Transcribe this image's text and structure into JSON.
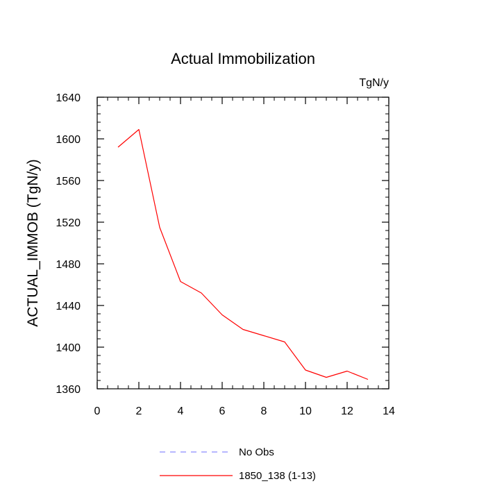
{
  "chart_data": {
    "type": "line",
    "title": "Actual Immobilization",
    "units_label": "TgN/y",
    "ylabel": "ACTUAL_IMMOB  (TgN/y)",
    "xlabel": "",
    "xlim": [
      0,
      14
    ],
    "ylim": [
      1360,
      1640
    ],
    "x_ticks": [
      "0",
      "2",
      "4",
      "6",
      "8",
      "10",
      "12",
      "14"
    ],
    "y_ticks": [
      "1360",
      "1400",
      "1440",
      "1480",
      "1520",
      "1560",
      "1600",
      "1640"
    ],
    "x_minor_step": 0.5,
    "y_minor_step": 8,
    "grid": false,
    "legend_position": "bottom-center",
    "series": [
      {
        "name": "1850_138 (1-13)",
        "color": "#ff0000",
        "style": "solid",
        "x": [
          1,
          2,
          3,
          4,
          5,
          6,
          7,
          8,
          9,
          10,
          11,
          12,
          13
        ],
        "y": [
          1592,
          1609,
          1515,
          1463,
          1452,
          1431,
          1417,
          1411,
          1405,
          1378,
          1371,
          1377,
          1369
        ]
      }
    ],
    "legend": [
      {
        "label": "No Obs",
        "color": "#8c8cff",
        "style": "dashed"
      },
      {
        "label": "1850_138 (1-13)",
        "color": "#ff0000",
        "style": "solid"
      }
    ]
  }
}
